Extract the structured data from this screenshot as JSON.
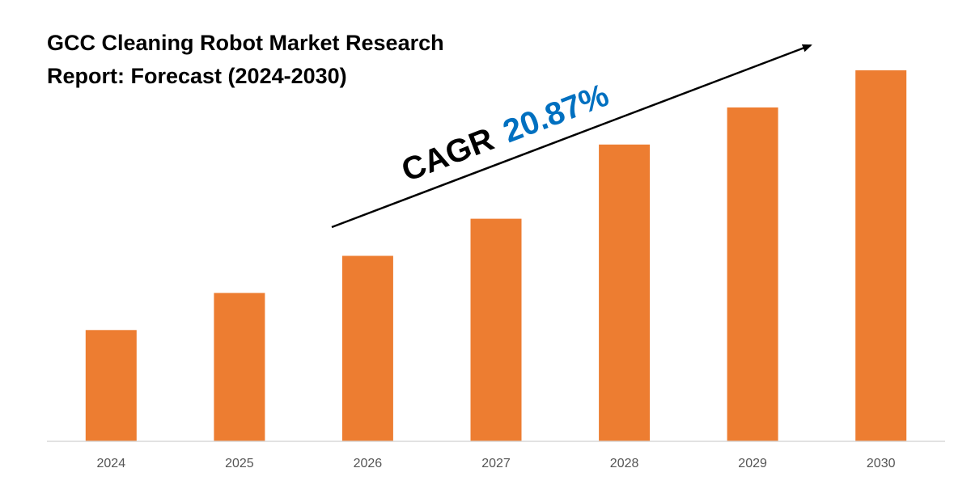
{
  "chart_data": {
    "type": "bar",
    "title_lines": [
      "GCC Cleaning Robot Market Research",
      "Report: Forecast (2024-2030)"
    ],
    "categories": [
      "2024",
      "2025",
      "2026",
      "2027",
      "2028",
      "2029",
      "2030"
    ],
    "values": [
      30,
      40,
      50,
      60,
      80,
      90,
      100
    ],
    "ylim": [
      0,
      100
    ],
    "xlabel": "",
    "ylabel": "",
    "grid": false,
    "legend": "none",
    "annotation": {
      "label": "CAGR",
      "value": "20.87%"
    }
  },
  "colors": {
    "bar": "#ed7d31",
    "annotation_value": "#0070c0",
    "axis": "#d9d9d9",
    "arrow": "#000000"
  }
}
